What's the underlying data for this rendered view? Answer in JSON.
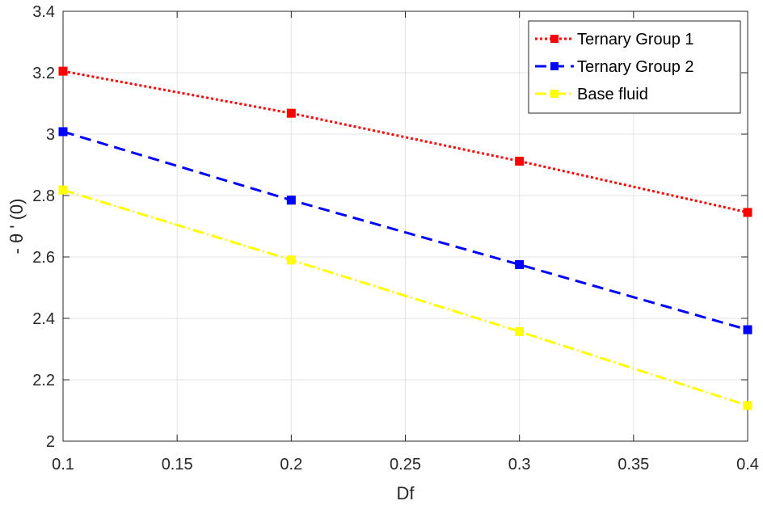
{
  "chart_data": {
    "type": "line",
    "title": "",
    "xlabel": "Df",
    "ylabel": "- θ ' (0)",
    "xlim": [
      0.1,
      0.4
    ],
    "ylim": [
      2,
      3.4
    ],
    "xticks": [
      "0.1",
      "0.15",
      "0.2",
      "0.25",
      "0.3",
      "0.35",
      "0.4"
    ],
    "yticks": [
      "2",
      "2.2",
      "2.4",
      "2.6",
      "2.8",
      "3",
      "3.2",
      "3.4"
    ],
    "grid": true,
    "legend_position": "top-right",
    "x": [
      0.1,
      0.2,
      0.3,
      0.4
    ],
    "series": [
      {
        "name": "Ternary Group 1",
        "values": [
          3.205,
          3.068,
          2.912,
          2.745
        ],
        "color": "#ff0000",
        "line_style": "dotted",
        "marker": "square"
      },
      {
        "name": "Ternary Group 2",
        "values": [
          3.008,
          2.785,
          2.575,
          2.363
        ],
        "color": "#0000ff",
        "line_style": "dashed",
        "marker": "square"
      },
      {
        "name": "Base fluid",
        "values": [
          2.818,
          2.59,
          2.357,
          2.116
        ],
        "color": "#ffff00",
        "line_style": "dash-dot",
        "marker": "square"
      }
    ]
  }
}
